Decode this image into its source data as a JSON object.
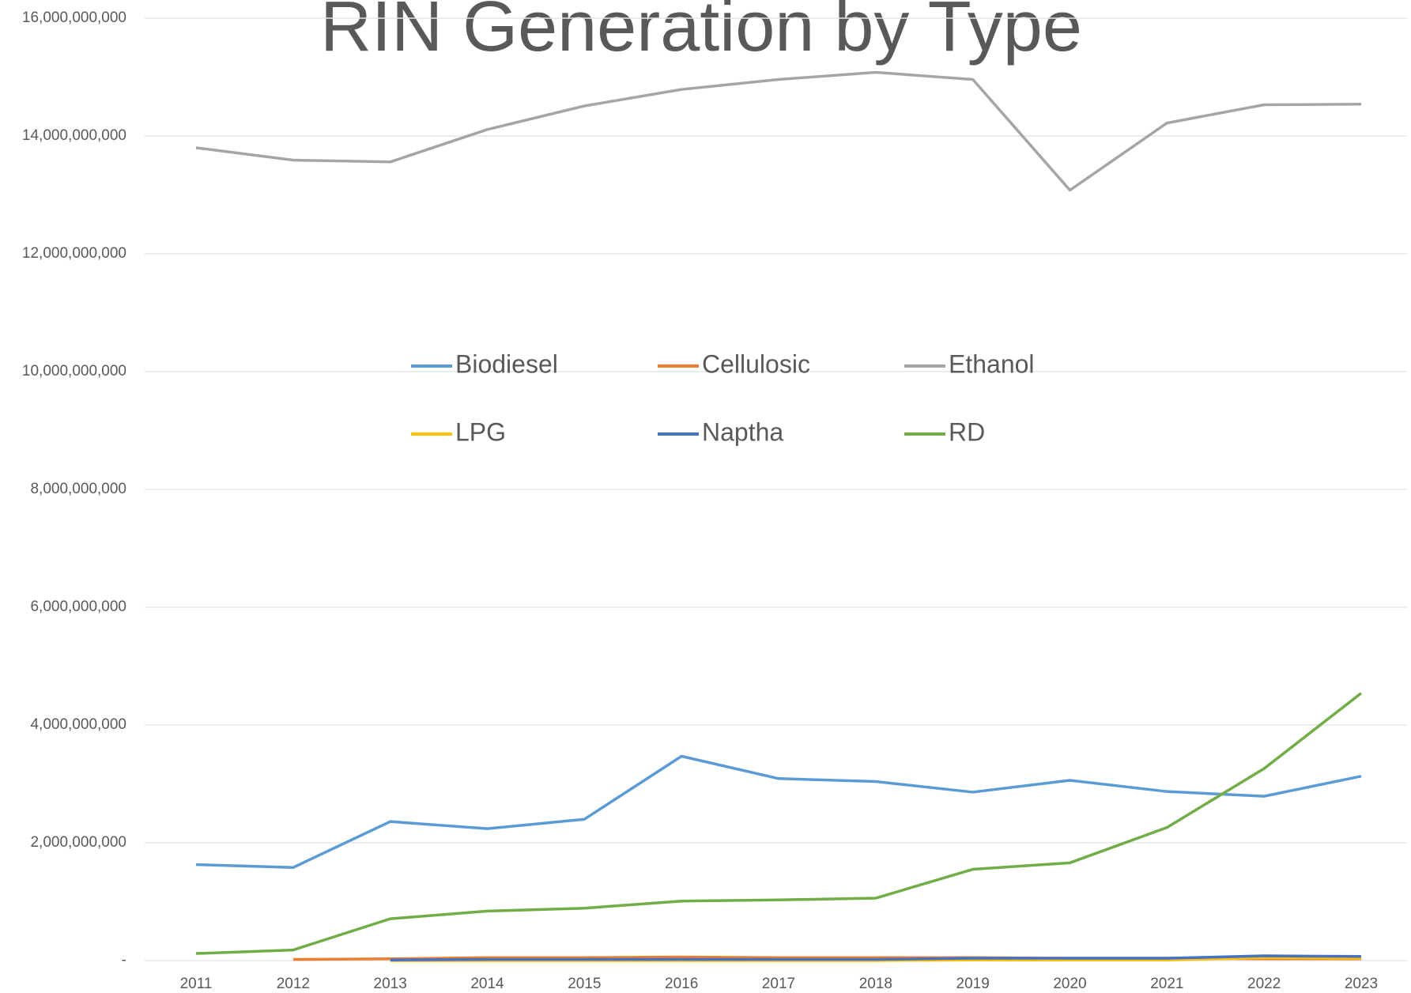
{
  "chart_data": {
    "type": "line",
    "title": "RIN Generation by Type",
    "categories": [
      "2011",
      "2012",
      "2013",
      "2014",
      "2015",
      "2016",
      "2017",
      "2018",
      "2019",
      "2020",
      "2021",
      "2022",
      "2023"
    ],
    "series": [
      {
        "name": "Biodiesel",
        "color": "#5b9bd5",
        "values": [
          1630000000,
          1580000000,
          2360000000,
          2240000000,
          2400000000,
          3470000000,
          3090000000,
          3040000000,
          2860000000,
          3060000000,
          2870000000,
          2790000000,
          3130000000
        ]
      },
      {
        "name": "Cellulosic",
        "color": "#ed7d31",
        "values": [
          null,
          20000000,
          30000000,
          50000000,
          50000000,
          60000000,
          50000000,
          50000000,
          50000000,
          40000000,
          40000000,
          30000000,
          30000000
        ]
      },
      {
        "name": "Ethanol",
        "color": "#a5a5a5",
        "values": [
          13800000000,
          13590000000,
          13560000000,
          14110000000,
          14510000000,
          14790000000,
          14960000000,
          15080000000,
          14960000000,
          13080000000,
          14220000000,
          14530000000,
          14540000000
        ]
      },
      {
        "name": "LPG",
        "color": "#ffc000",
        "values": [
          null,
          null,
          0,
          0,
          0,
          0,
          0,
          0,
          10000000,
          10000000,
          10000000,
          50000000,
          40000000
        ]
      },
      {
        "name": "Naptha",
        "color": "#4472c4",
        "values": [
          null,
          null,
          10000000,
          20000000,
          20000000,
          20000000,
          20000000,
          20000000,
          40000000,
          40000000,
          40000000,
          80000000,
          70000000
        ]
      },
      {
        "name": "RD",
        "color": "#70ad47",
        "values": [
          120000000,
          180000000,
          710000000,
          840000000,
          890000000,
          1010000000,
          1030000000,
          1060000000,
          1550000000,
          1660000000,
          2260000000,
          3260000000,
          4540000000
        ]
      }
    ],
    "ylim": [
      0,
      16000000000
    ],
    "yticks": [
      {
        "value": 0,
        "label": "-"
      },
      {
        "value": 2000000000,
        "label": "2,000,000,000"
      },
      {
        "value": 4000000000,
        "label": "4,000,000,000"
      },
      {
        "value": 6000000000,
        "label": "6,000,000,000"
      },
      {
        "value": 8000000000,
        "label": "8,000,000,000"
      },
      {
        "value": 10000000000,
        "label": "10,000,000,000"
      },
      {
        "value": 12000000000,
        "label": "12,000,000,000"
      },
      {
        "value": 14000000000,
        "label": "14,000,000,000"
      },
      {
        "value": 16000000000,
        "label": "16,000,000,000"
      }
    ],
    "grid": true
  }
}
